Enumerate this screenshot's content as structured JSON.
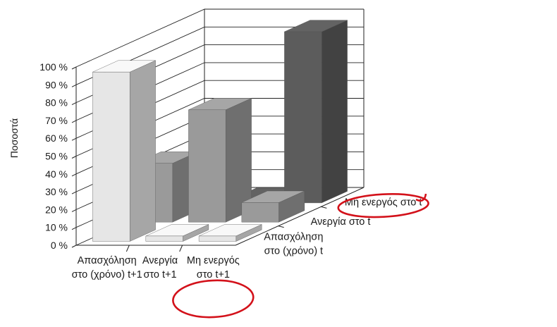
{
  "chart_data": {
    "type": "bar",
    "subtype": "3d-grouped",
    "ylabel": "Ποσοστά",
    "ylim": [
      0,
      100
    ],
    "yticks": [
      "0 %",
      "10 %",
      "20 %",
      "30 %",
      "40 %",
      "50 %",
      "60 %",
      "70 %",
      "80 %",
      "90 %",
      "100 %"
    ],
    "categories": [
      [
        "Απασχόληση",
        "στο (χρόνο) t+1"
      ],
      [
        "Ανεργία",
        "στο t+1"
      ],
      [
        "Μη ενεργός",
        "στο t+1"
      ]
    ],
    "series": [
      {
        "name": "Μη ενεργός στο t",
        "values": [
          4,
          2,
          96
        ],
        "color": "#5c5c5c"
      },
      {
        "name": "Ανεργία στο t",
        "values": [
          33,
          63,
          11
        ],
        "color": "#9a9a9a"
      },
      {
        "name": "Απασχόληση στο (χρόνο) t",
        "values": [
          95,
          3,
          3
        ],
        "color": "#e6e6e6"
      }
    ],
    "annotations": [
      "red-circle around 'Μη ενεργός στο t+1'",
      "red-circle around 'Μη ενεργός στο t'"
    ],
    "grid": true
  }
}
